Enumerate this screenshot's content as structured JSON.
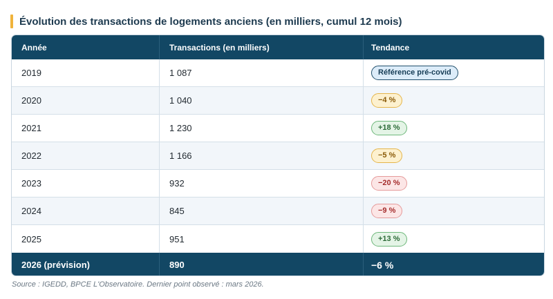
{
  "title": "Évolution des transactions de logements anciens (en milliers, cumul 12 mois)",
  "colors": {
    "header_bg": "#124764",
    "accent_bar": "#f0b33b",
    "alt_row_bg": "#f2f6fa"
  },
  "table": {
    "headers": [
      "Année",
      "Transactions (en milliers)",
      "Tendance"
    ],
    "rows": [
      {
        "year": "2019",
        "transactions": "1 087",
        "trend": "Référence pré-covid",
        "trend_style": "ref"
      },
      {
        "year": "2020",
        "transactions": "1 040",
        "trend": "−4 %",
        "trend_style": "neg-light"
      },
      {
        "year": "2021",
        "transactions": "1 230",
        "trend": "+18 %",
        "trend_style": "pos"
      },
      {
        "year": "2022",
        "transactions": "1 166",
        "trend": "−5 %",
        "trend_style": "neg-light"
      },
      {
        "year": "2023",
        "transactions": "932",
        "trend": "−20 %",
        "trend_style": "neg-strong"
      },
      {
        "year": "2024",
        "transactions": "845",
        "trend": "−9 %",
        "trend_style": "neg-strong"
      },
      {
        "year": "2025",
        "transactions": "951",
        "trend": "+13 %",
        "trend_style": "pos"
      }
    ],
    "footer": {
      "year": "2026 (prévision)",
      "transactions": "890",
      "trend": "−6 %"
    }
  },
  "source": "Source : IGEDD, BPCE L'Observatoire. Dernier point observé : mars 2026."
}
